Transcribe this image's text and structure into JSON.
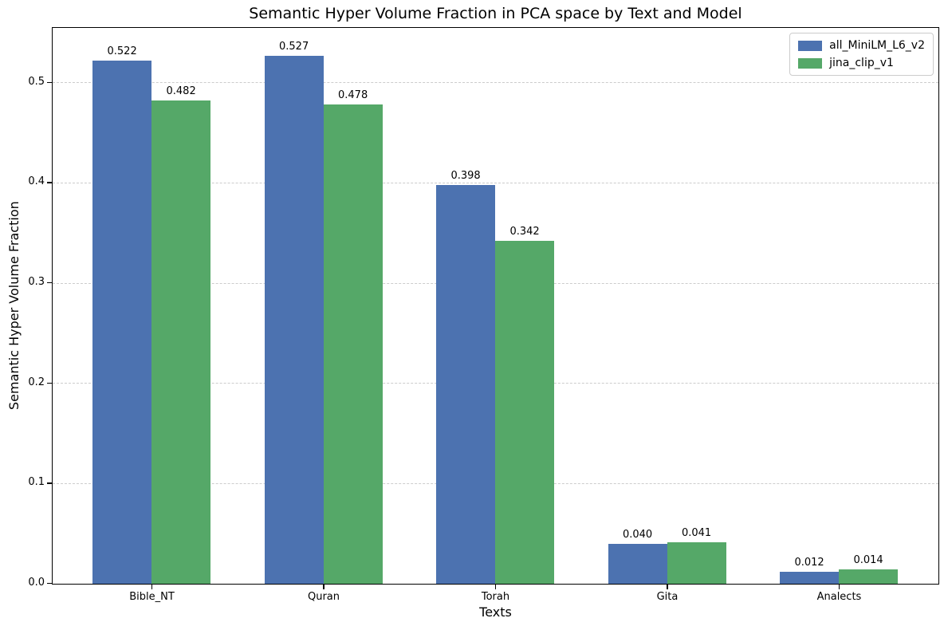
{
  "chart_data": {
    "type": "bar",
    "title": "Semantic Hyper Volume Fraction in PCA space by Text and Model",
    "xlabel": "Texts",
    "ylabel": "Semantic Hyper Volume Fraction",
    "categories": [
      "Bible_NT",
      "Quran",
      "Torah",
      "Gita",
      "Analects"
    ],
    "series": [
      {
        "name": "all_MiniLM_L6_v2",
        "color": "#4C72B0",
        "values": [
          0.522,
          0.527,
          0.398,
          0.04,
          0.012
        ]
      },
      {
        "name": "jina_clip_v1",
        "color": "#55A868",
        "values": [
          0.482,
          0.478,
          0.342,
          0.041,
          0.014
        ]
      }
    ],
    "bar_value_labels": [
      [
        "0.522",
        "0.527",
        "0.398",
        "0.040",
        "0.012"
      ],
      [
        "0.482",
        "0.478",
        "0.342",
        "0.041",
        "0.014"
      ]
    ],
    "yticks": [
      "0.0",
      "0.1",
      "0.2",
      "0.3",
      "0.4",
      "0.5"
    ],
    "ylim": [
      0,
      0.554
    ],
    "grid": "horizontal-dashed",
    "legend_position": "upper-right",
    "colors": {
      "grid": "#cccccc",
      "spine": "#000000",
      "background": "#ffffff",
      "text": "#000000"
    }
  }
}
